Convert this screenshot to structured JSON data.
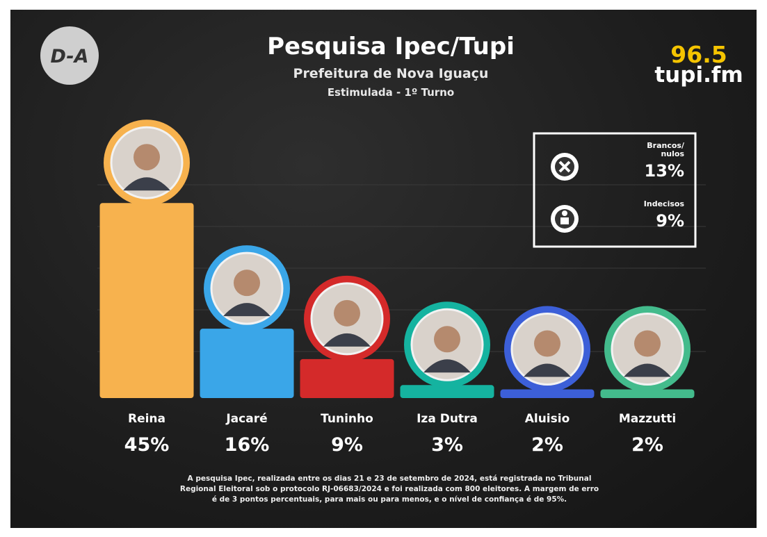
{
  "logo": {
    "left": "D-A",
    "right_top": "96.5",
    "right_bottom": "tupi.fm"
  },
  "chart_data": {
    "type": "bar",
    "title": "Pesquisa Ipec/Tupi",
    "subtitle": "Prefeitura de Nova Iguaçu",
    "subtitle2": "Estimulada - 1º Turno",
    "categories": [
      "Reina",
      "Jacaré",
      "Tuninho",
      "Iza Dutra",
      "Aluisio",
      "Mazzutti"
    ],
    "values": [
      45,
      16,
      9,
      3,
      2,
      2
    ],
    "value_labels": [
      "45%",
      "16%",
      "9%",
      "3%",
      "2%",
      "2%"
    ],
    "colors": [
      "#f7b24e",
      "#3aa6e8",
      "#d42a2a",
      "#15b3a0",
      "#3c5fd8",
      "#43bb8c"
    ],
    "side_stats": {
      "categories": [
        "Brancos/ nulos",
        "Indecisos"
      ],
      "values": [
        13,
        9
      ],
      "value_labels": [
        "13%",
        "9%"
      ]
    },
    "footnote": [
      "A pesquisa Ipec, realizada entre os dias 21 e 23 de setembro de 2024, está registrada no Tribunal",
      "Regional Eleitoral sob o protocolo RJ-06683/2024  e foi realizada com 800 eleitores. A margem de erro",
      "é de 3 pontos percentuais, para mais ou para menos, e o nível de confiança é de 95%."
    ]
  }
}
